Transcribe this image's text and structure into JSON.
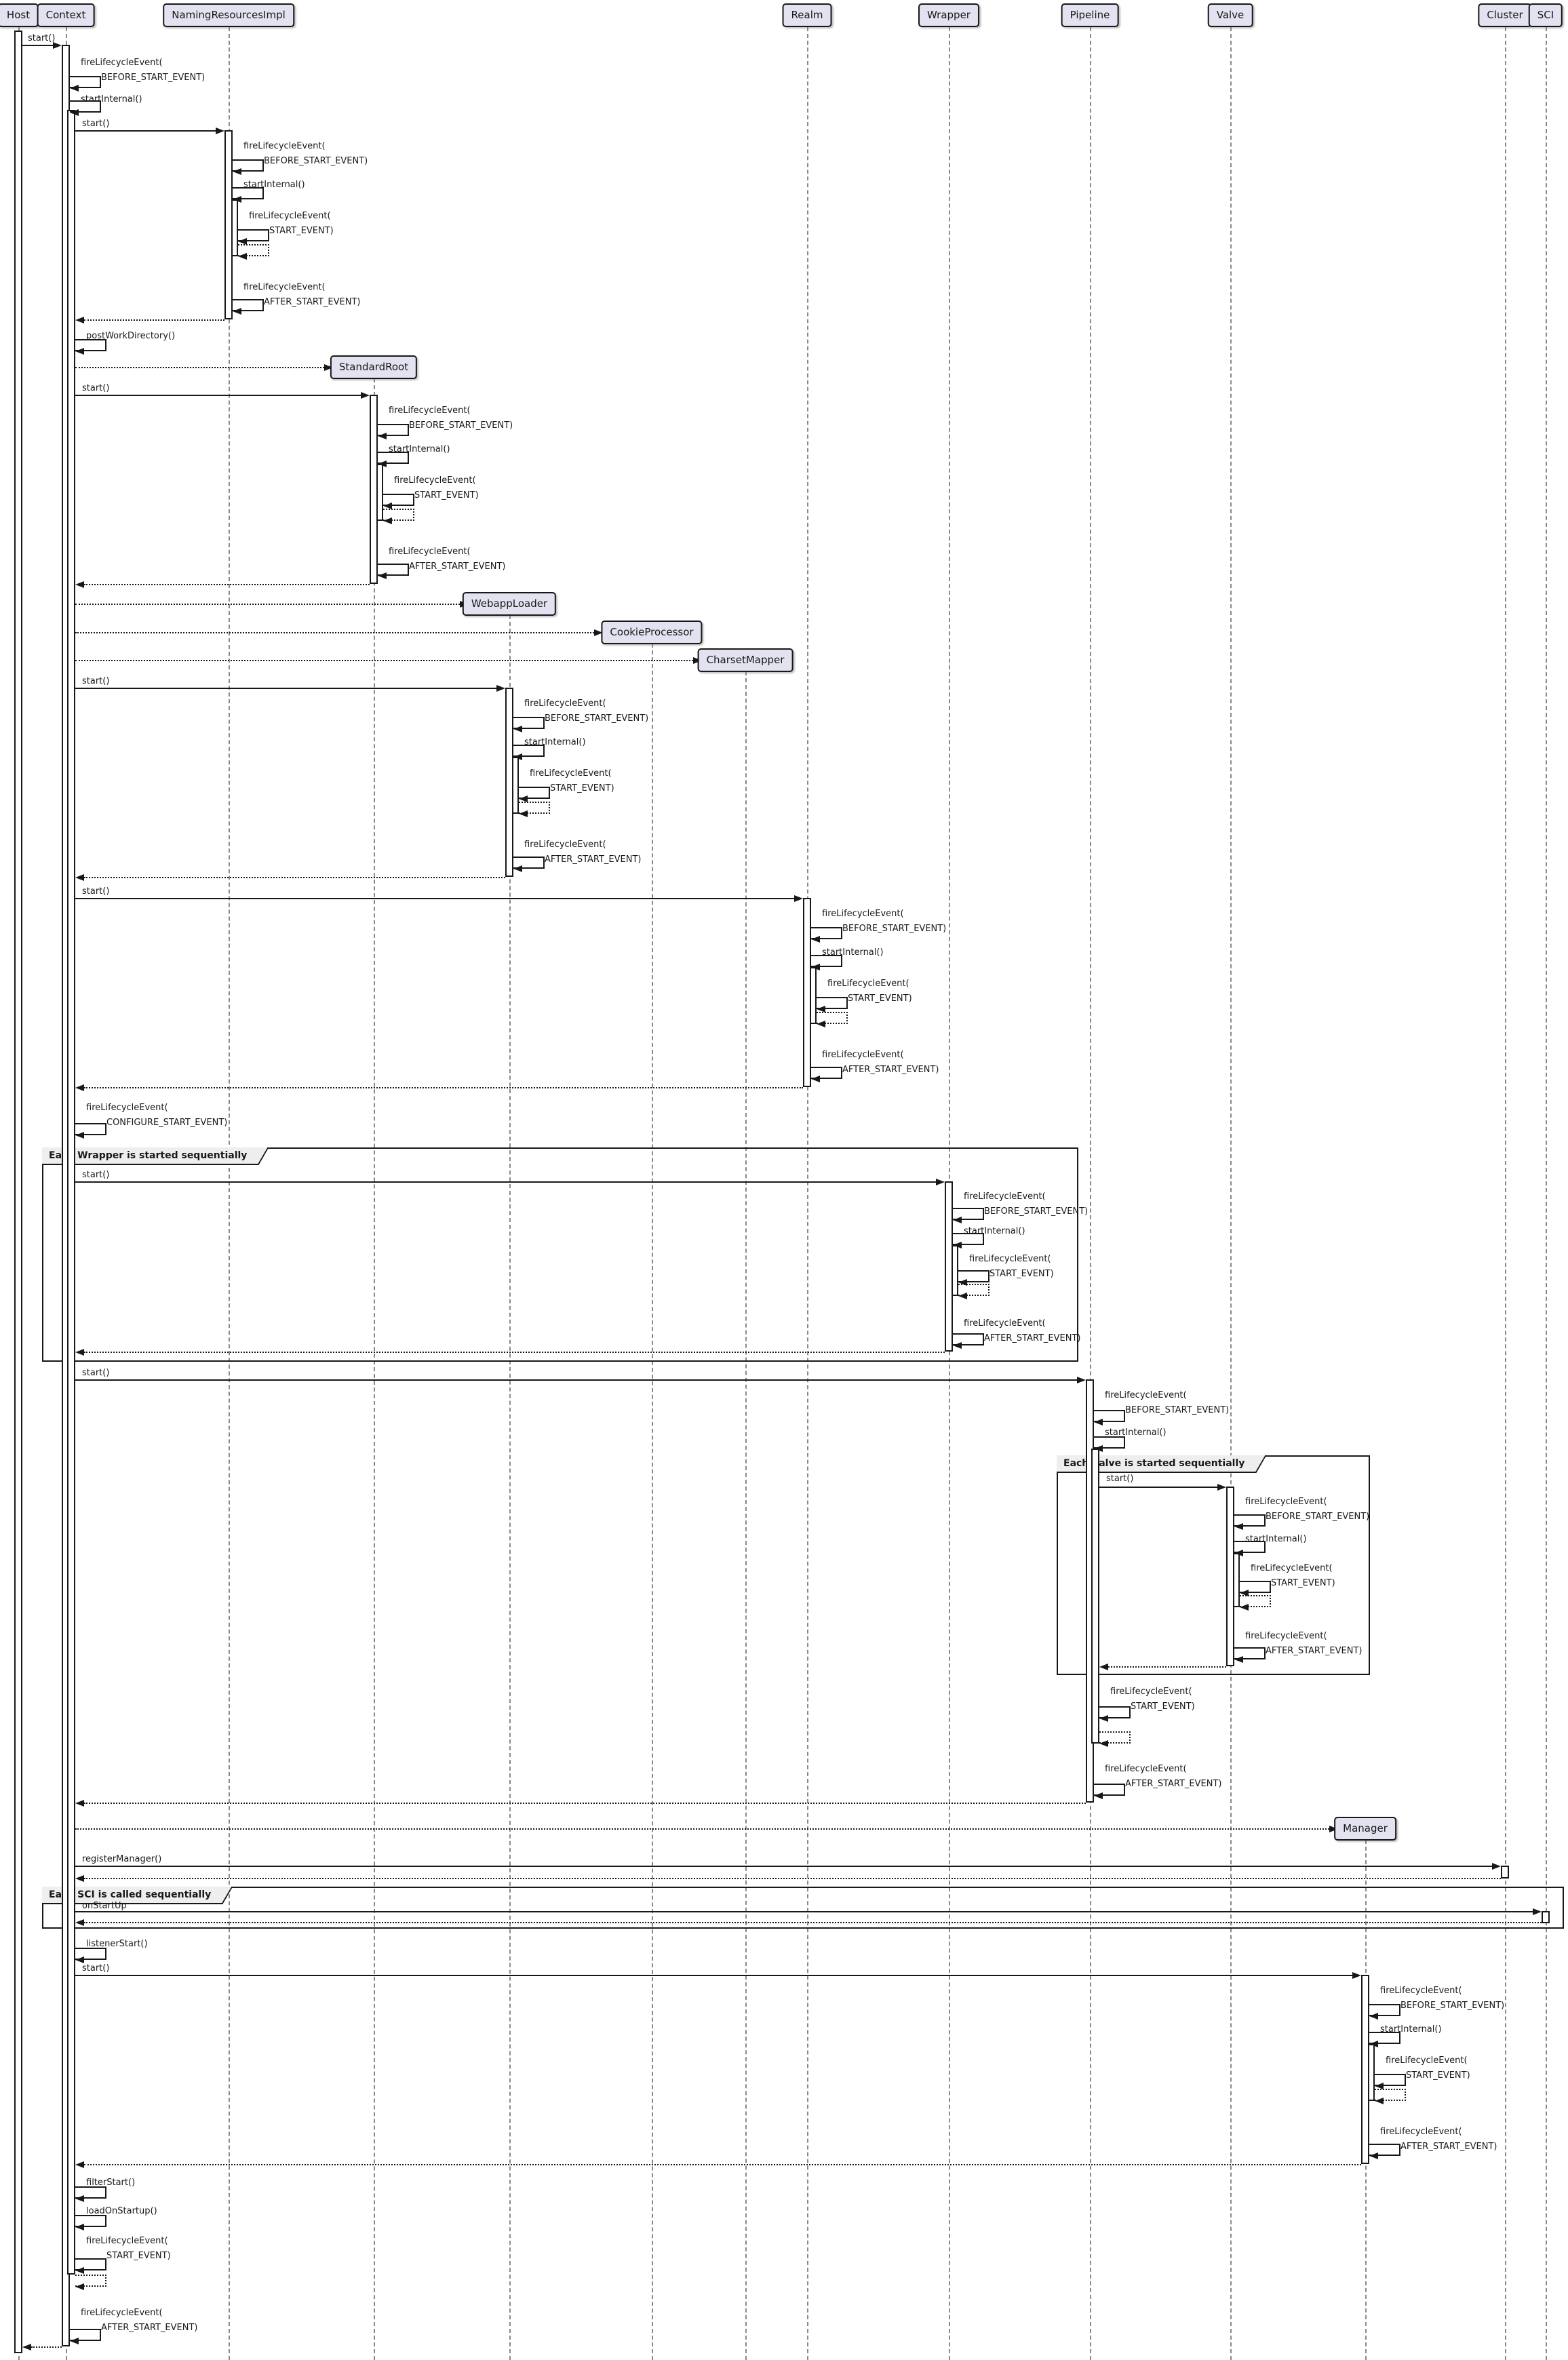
{
  "diagram": {
    "type": "uml-sequence-diagram",
    "subject": "Tomcat Context startup lifecycle",
    "background": "#FFFFFF",
    "colors": {
      "participant_fill": "#E2E2F0",
      "participant_border": "#181818",
      "line": "#181818",
      "lifeline": "#8A8A8A",
      "frame_title_fill": "#EEEEEE",
      "text": "#181818"
    },
    "participants": [
      {
        "id": "host",
        "label": "Host",
        "created": false
      },
      {
        "id": "context",
        "label": "Context",
        "created": false
      },
      {
        "id": "naming",
        "label": "NamingResourcesImpl",
        "created": false
      },
      {
        "id": "realm",
        "label": "Realm",
        "created": false
      },
      {
        "id": "wrapper",
        "label": "Wrapper",
        "created": false
      },
      {
        "id": "pipeline",
        "label": "Pipeline",
        "created": false
      },
      {
        "id": "valve",
        "label": "Valve",
        "created": false
      },
      {
        "id": "cluster",
        "label": "Cluster",
        "created": false
      },
      {
        "id": "sci",
        "label": "SCI",
        "created": false
      },
      {
        "id": "standardroot",
        "label": "StandardRoot",
        "created": true
      },
      {
        "id": "webapploader",
        "label": "WebappLoader",
        "created": true
      },
      {
        "id": "cookieprocessor",
        "label": "CookieProcessor",
        "created": true
      },
      {
        "id": "charsetmapper",
        "label": "CharsetMapper",
        "created": true
      },
      {
        "id": "manager",
        "label": "Manager",
        "created": true
      }
    ],
    "labels": {
      "start": [
        "start()"
      ],
      "fire_before": [
        "fireLifecycleEvent(",
        "BEFORE_START_EVENT)"
      ],
      "fire_start": [
        "fireLifecycleEvent(",
        "START_EVENT)"
      ],
      "fire_after": [
        "fireLifecycleEvent(",
        "AFTER_START_EVENT)"
      ],
      "fire_configure": [
        "fireLifecycleEvent(",
        "CONFIGURE_START_EVENT)"
      ],
      "start_internal": [
        "startInternal()"
      ],
      "post_work_directory": [
        "postWorkDirectory()"
      ],
      "register_manager": [
        "registerManager()"
      ],
      "on_start_up": [
        "onStartUp"
      ],
      "listener_start": [
        "listenerStart()"
      ],
      "filter_start": [
        "filterStart()"
      ],
      "load_on_startup": [
        "loadOnStartup()"
      ]
    },
    "frames": [
      {
        "title": "Each Wrapper is started sequentially"
      },
      {
        "title": "Each Valve is started sequentially"
      },
      {
        "title": "Each SCI is called sequentially"
      }
    ]
  }
}
